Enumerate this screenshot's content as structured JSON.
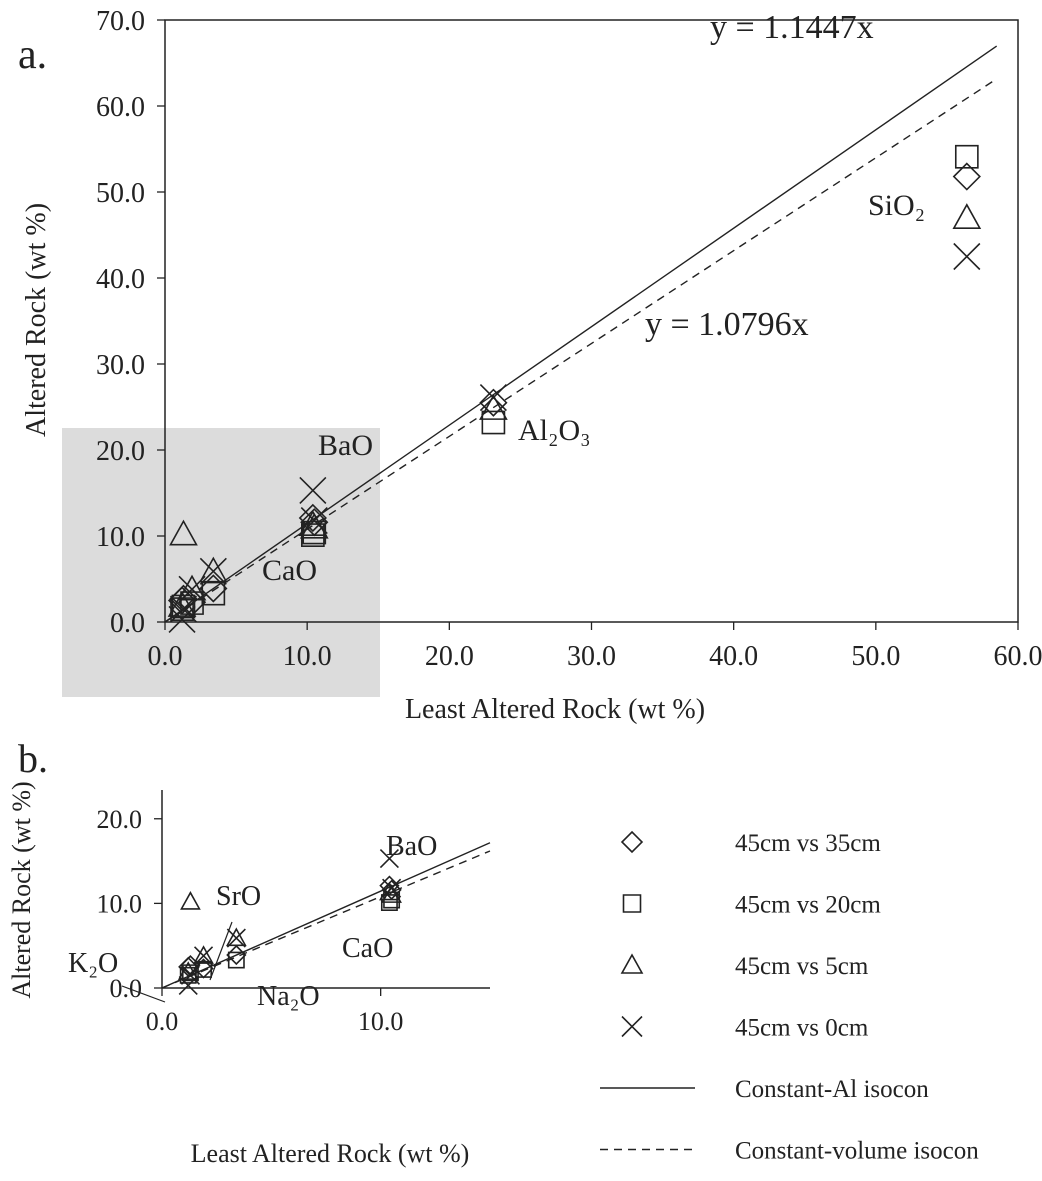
{
  "chart_data": [
    {
      "type": "scatter",
      "panel_label": "a.",
      "x_label": "Least Altered Rock (wt %)",
      "y_label": "Altered Rock (wt %)",
      "x": [
        56.4,
        23.1,
        10.4,
        10.5,
        1.3,
        1.2,
        1.9,
        3.4
      ],
      "series": [
        {
          "marker": "diamond",
          "values": [
            51.8,
            25.5,
            12.1,
            11.6,
            2.7,
            2.5,
            2.3,
            3.9
          ]
        },
        {
          "marker": "square",
          "values": [
            54.1,
            23.2,
            10.1,
            10.4,
            1.8,
            1.5,
            2.2,
            3.3
          ]
        },
        {
          "marker": "triangle",
          "values": [
            47.0,
            24.8,
            11.3,
            11.0,
            10.2,
            1.9,
            3.8,
            5.9
          ]
        },
        {
          "marker": "cross",
          "values": [
            42.5,
            26.1,
            15.3,
            11.8,
            1.5,
            0.3,
            3.8,
            5.9
          ]
        }
      ],
      "lines": [
        {
          "slope": 1.1447,
          "dashed": false,
          "label": "y = 1.1447x"
        },
        {
          "slope": 1.0796,
          "dashed": true,
          "label": "y = 1.0796x"
        }
      ],
      "annotations": [
        "SiO₂",
        "Al₂O₃",
        "BaO",
        "CaO"
      ],
      "xlim": [
        0,
        60
      ],
      "ylim": [
        0,
        70
      ],
      "xticks": [
        {
          "value": 0,
          "label": "0.0"
        },
        {
          "value": 10,
          "label": "10.0"
        },
        {
          "value": 20,
          "label": "20.0"
        },
        {
          "value": 30,
          "label": "30.0"
        },
        {
          "value": 40,
          "label": "40.0"
        },
        {
          "value": 50,
          "label": "50.0"
        },
        {
          "value": 60,
          "label": "60.0"
        }
      ],
      "yticks": [
        {
          "value": 0,
          "label": "0.0"
        },
        {
          "value": 10,
          "label": "10.0"
        },
        {
          "value": 20,
          "label": "20.0"
        },
        {
          "value": 30,
          "label": "30.0"
        },
        {
          "value": 40,
          "label": "40.0"
        },
        {
          "value": 50,
          "label": "50.0"
        },
        {
          "value": 60,
          "label": "60.0"
        },
        {
          "value": 70,
          "label": "70.0"
        }
      ],
      "color": "#222222"
    },
    {
      "type": "scatter",
      "panel_label": "b.",
      "x_label": "Least Altered Rock (wt %)",
      "y_label": "Altered Rock (wt %)",
      "x": [
        10.4,
        10.5,
        1.3,
        1.2,
        1.9,
        3.4
      ],
      "series": [
        {
          "name": "45cm vs 35cm",
          "marker": "diamond",
          "values": [
            12.1,
            11.6,
            2.7,
            2.5,
            2.3,
            3.9
          ]
        },
        {
          "name": "45cm vs 20cm",
          "marker": "square",
          "values": [
            10.1,
            10.4,
            1.8,
            1.5,
            2.2,
            3.3
          ]
        },
        {
          "name": "45cm vs 5cm",
          "marker": "triangle",
          "values": [
            11.3,
            11.0,
            10.2,
            1.9,
            3.8,
            5.9
          ]
        },
        {
          "name": "45cm vs 0cm",
          "marker": "cross",
          "values": [
            15.3,
            11.8,
            1.5,
            0.3,
            3.8,
            5.9
          ]
        }
      ],
      "lines": [
        {
          "name": "Constant-Al isocon",
          "slope": 1.1447,
          "dashed": false
        },
        {
          "name": "Constant-volume isocon",
          "slope": 1.0796,
          "dashed": true
        }
      ],
      "annotations": [
        "BaO",
        "SrO",
        "CaO",
        "K₂O",
        "Na₂O"
      ],
      "xlim": [
        0,
        15
      ],
      "ylim": [
        0,
        23.4
      ],
      "xticks": [
        {
          "value": 0,
          "label": "0.0"
        },
        {
          "value": 10,
          "label": "10.0"
        }
      ],
      "yticks": [
        {
          "value": 0,
          "label": "0.0"
        },
        {
          "value": 10,
          "label": "10.0"
        },
        {
          "value": 20,
          "label": "20.0"
        }
      ],
      "color": "#222222"
    }
  ]
}
